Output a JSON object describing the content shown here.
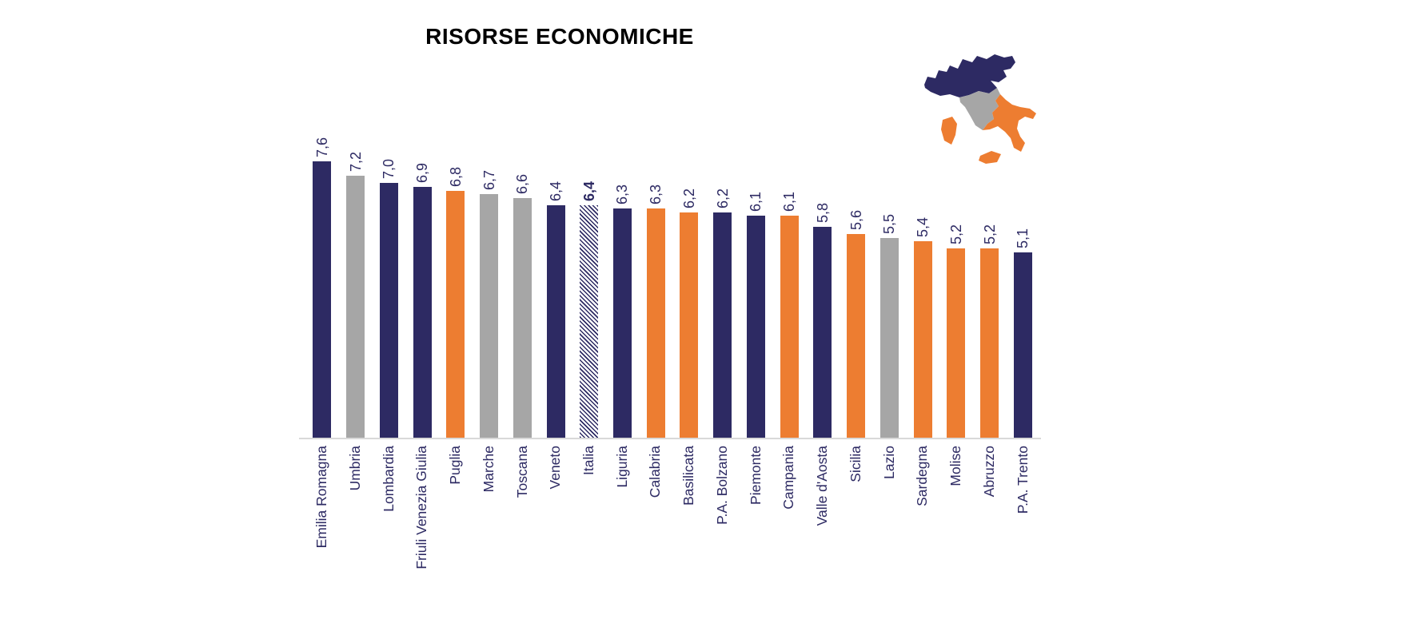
{
  "chart_data": {
    "type": "bar",
    "title": "RISORSE ECONOMICHE",
    "categories": [
      "Emilia Romagna",
      "Umbria",
      "Lombardia",
      "Friuli Venezia Giulia",
      "Puglia",
      "Marche",
      "Toscana",
      "Veneto",
      "Italia",
      "Liguria",
      "Calabria",
      "Basilicata",
      "P.A. Bolzano",
      "Piemonte",
      "Campania",
      "Valle d'Aosta",
      "Sicilia",
      "Lazio",
      "Sardegna",
      "Molise",
      "Abruzzo",
      "P.A. Trento"
    ],
    "values": [
      7.6,
      7.2,
      7.0,
      6.9,
      6.8,
      6.7,
      6.6,
      6.4,
      6.4,
      6.3,
      6.3,
      6.2,
      6.2,
      6.1,
      6.1,
      5.8,
      5.6,
      5.5,
      5.4,
      5.2,
      5.2,
      5.1
    ],
    "value_labels": [
      "7,6",
      "7,2",
      "7,0",
      "6,9",
      "6,8",
      "6,7",
      "6,6",
      "6,4",
      "6,4",
      "6,3",
      "6,3",
      "6,2",
      "6,2",
      "6,1",
      "6,1",
      "5,8",
      "5,6",
      "5,5",
      "5,4",
      "5,2",
      "5,2",
      "5,1"
    ],
    "groups": [
      "north",
      "center",
      "north",
      "north",
      "south",
      "center",
      "center",
      "north",
      "italy",
      "north",
      "south",
      "south",
      "north",
      "north",
      "south",
      "north",
      "south",
      "center",
      "south",
      "south",
      "south",
      "north"
    ],
    "xlabel": "",
    "ylabel": "",
    "ylim": [
      0,
      8
    ],
    "grid": false,
    "legend": "italy-map-top-right",
    "colors": {
      "north": "#2D2A63",
      "center": "#A6A6A6",
      "south": "#ED7D31",
      "italy_hatch_stripe": "#2D2A63",
      "italy_hatch_background": "#FFFFFF",
      "label_text": "#2D2A63",
      "title_text": "#000000",
      "axis_line": "#D9D9D9"
    }
  },
  "map": {
    "icon": "italy-map",
    "north_color": "#2D2A63",
    "center_color": "#A6A6A6",
    "south_color": "#ED7D31"
  }
}
